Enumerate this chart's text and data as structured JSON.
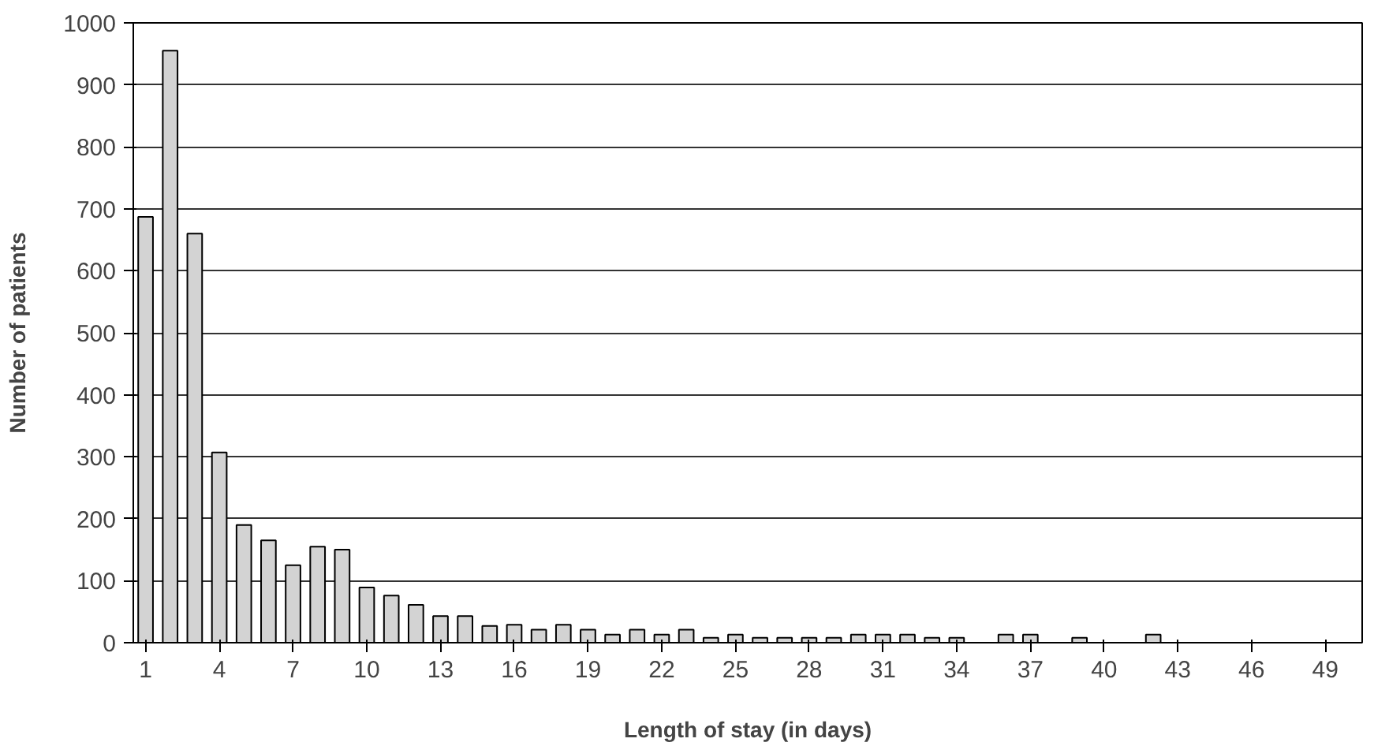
{
  "chart_data": {
    "type": "bar",
    "xlabel": "Length of stay (in days)",
    "ylabel": "Number of patients",
    "categories": [
      "1",
      null,
      null,
      "4",
      null,
      null,
      "7",
      null,
      null,
      "10",
      null,
      null,
      "13",
      null,
      null,
      "16",
      null,
      null,
      "19",
      null,
      null,
      "22",
      null,
      null,
      "25",
      null,
      null,
      "28",
      null,
      null,
      "31",
      null,
      null,
      "34",
      null,
      null,
      "37",
      null,
      null,
      "40",
      null,
      null,
      "43",
      null,
      null,
      "46",
      null,
      null,
      "49",
      null
    ],
    "values": [
      687,
      955,
      660,
      307,
      190,
      165,
      125,
      155,
      150,
      89,
      76,
      61,
      43,
      43,
      27,
      29,
      21,
      29,
      21,
      13,
      21,
      13,
      21,
      8,
      13,
      8,
      8,
      8,
      8,
      13,
      13,
      13,
      8,
      8,
      0,
      13,
      13,
      0,
      8,
      0,
      0,
      13,
      0,
      0,
      0,
      0,
      0,
      0,
      0,
      0
    ],
    "color": "#d3d3d3",
    "ylim": [
      0,
      1000
    ],
    "yticks": [
      0,
      100,
      200,
      300,
      400,
      500,
      600,
      700,
      800,
      900,
      1000
    ],
    "grid": "y"
  }
}
